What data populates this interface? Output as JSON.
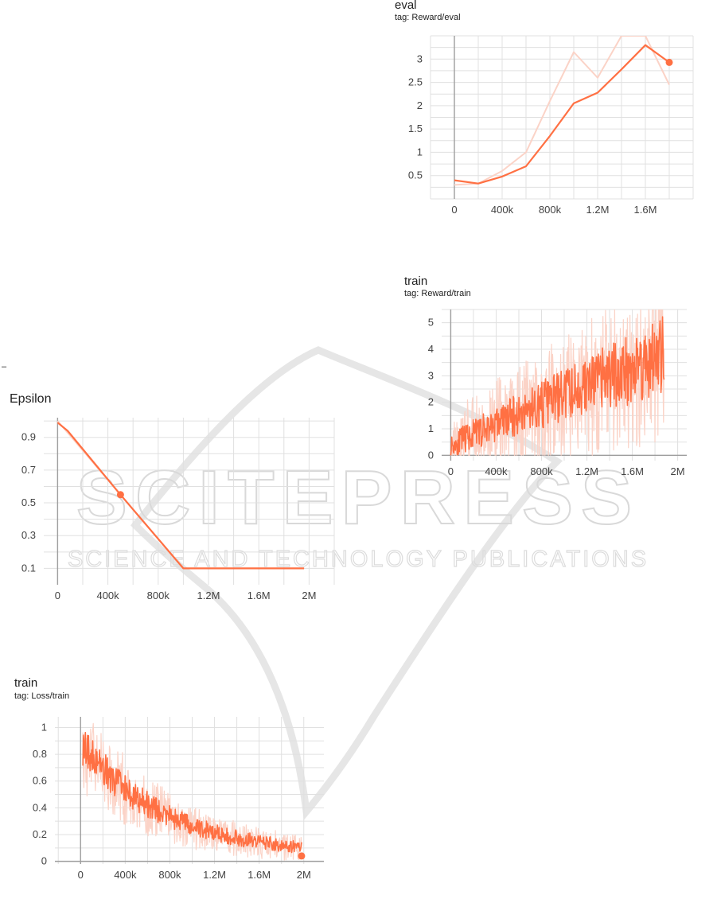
{
  "stray_mark": "–",
  "watermark": {
    "line1": "SCITEPRESS",
    "line2": "SCIENCE AND TECHNOLOGY PUBLICATIONS"
  },
  "colors": {
    "line": "#ff7043",
    "line_faint": "#fbd3c7",
    "grid": "#e0e0e0",
    "axis": "#9e9e9e",
    "watermark": "#d6d6d6"
  },
  "chart_data": [
    {
      "id": "epsilon",
      "type": "line",
      "title": "Epsilon",
      "tag": "",
      "xlim": [
        -110000,
        2200000
      ],
      "ylim": [
        0,
        1.02
      ],
      "xticks": [
        0,
        400000,
        800000,
        1200000,
        1600000,
        2000000
      ],
      "xtick_labels": [
        "0",
        "400k",
        "800k",
        "1.2M",
        "1.6M",
        "2M"
      ],
      "yticks": [
        0.1,
        0.3,
        0.5,
        0.7,
        0.9
      ],
      "ytick_labels": [
        "0.1",
        "0.3",
        "0.5",
        "0.7",
        "0.9"
      ],
      "grid": true,
      "series": [
        {
          "role": "smoothed",
          "x": [
            0,
            80000,
            500000,
            1000000,
            1400000,
            1960000
          ],
          "y": [
            0.99,
            0.94,
            0.55,
            0.1,
            0.1,
            0.1
          ]
        },
        {
          "role": "raw",
          "x": [
            0,
            1000000,
            1960000
          ],
          "y": [
            1.0,
            0.1,
            0.1
          ]
        }
      ],
      "marker": {
        "x": 500000,
        "y": 0.55
      }
    },
    {
      "id": "reward-eval",
      "type": "line",
      "title": "eval",
      "tag": "tag: Reward/eval",
      "xlim": [
        -200000,
        2000000
      ],
      "ylim": [
        0,
        3.5
      ],
      "xticks": [
        0,
        400000,
        800000,
        1200000,
        1600000
      ],
      "xtick_labels": [
        "0",
        "400k",
        "800k",
        "1.2M",
        "1.6M"
      ],
      "yticks": [
        0.5,
        1,
        1.5,
        2,
        2.5,
        3
      ],
      "ytick_labels": [
        "0.5",
        "1",
        "1.5",
        "2",
        "2.5",
        "3"
      ],
      "grid": true,
      "series": [
        {
          "role": "smoothed",
          "x": [
            0,
            200000,
            400000,
            600000,
            800000,
            1000000,
            1200000,
            1400000,
            1600000,
            1800000
          ],
          "y": [
            0.4,
            0.33,
            0.48,
            0.7,
            1.35,
            2.05,
            2.28,
            2.78,
            3.3,
            2.93
          ]
        },
        {
          "role": "raw",
          "x": [
            0,
            200000,
            400000,
            600000,
            800000,
            1000000,
            1200000,
            1400000,
            1600000,
            1800000
          ],
          "y": [
            0.3,
            0.33,
            0.6,
            1.0,
            2.1,
            3.15,
            2.6,
            3.5,
            3.5,
            2.45
          ]
        }
      ],
      "marker": {
        "x": 1800000,
        "y": 2.93
      }
    },
    {
      "id": "reward-train",
      "type": "line",
      "title": "train",
      "tag": "tag: Reward/train",
      "xlim": [
        -80000,
        2080000
      ],
      "ylim": [
        -0.2,
        5.5
      ],
      "xticks": [
        0,
        400000,
        800000,
        1200000,
        1600000,
        2000000
      ],
      "xtick_labels": [
        "0",
        "400k",
        "800k",
        "1.2M",
        "1.6M",
        "2M"
      ],
      "yticks": [
        0,
        1,
        2,
        3,
        4,
        5
      ],
      "ytick_labels": [
        "0",
        "1",
        "2",
        "3",
        "4",
        "5"
      ],
      "grid": true,
      "noisy": {
        "x_start": 0,
        "x_end": 1880000,
        "n": 420,
        "y_start": 0.3,
        "y_end": 3.6,
        "noise": 1.1,
        "raw_noise": 2.6,
        "seed": 11
      }
    },
    {
      "id": "loss-train",
      "type": "line",
      "title": "train",
      "tag": "tag: Loss/train",
      "xlim": [
        -230000,
        2180000
      ],
      "ylim": [
        -0.02,
        1.08
      ],
      "xticks": [
        0,
        400000,
        800000,
        1200000,
        1600000,
        2000000
      ],
      "xtick_labels": [
        "0",
        "400k",
        "800k",
        "1.2M",
        "1.6M",
        "2M"
      ],
      "yticks": [
        0,
        0.2,
        0.4,
        0.6,
        0.8,
        1
      ],
      "ytick_labels": [
        "0",
        "0.2",
        "0.4",
        "0.6",
        "0.8",
        "1"
      ],
      "grid": true,
      "noisy": {
        "x_start": 20000,
        "x_end": 1980000,
        "n": 420,
        "y_start": 0.85,
        "y_end": 0.04,
        "noise": 0.12,
        "raw_noise": 0.3,
        "seed": 5,
        "decay": true
      },
      "marker": {
        "x": 1980000,
        "y": 0.04
      }
    }
  ]
}
